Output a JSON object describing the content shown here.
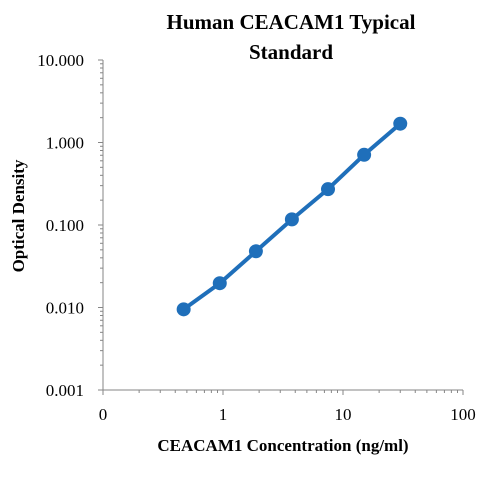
{
  "chart_data": {
    "type": "line",
    "title_lines": [
      "Human CEACAM1 Typical",
      "Standard"
    ],
    "xlabel": "CEACAM1 Concentration (ng/ml)",
    "ylabel": "Optical Density",
    "xscale": "log",
    "yscale": "log",
    "xlim": [
      0.1,
      100
    ],
    "ylim": [
      0.001,
      10
    ],
    "x_tick_labels": [
      "0",
      "1",
      "10",
      "100"
    ],
    "x_tick_values": [
      0.1,
      1,
      10,
      100
    ],
    "y_tick_labels": [
      "0.001",
      "0.010",
      "0.100",
      "1.000",
      "10.000"
    ],
    "y_tick_values": [
      0.001,
      0.01,
      0.1,
      1,
      10
    ],
    "grid": false,
    "legend": "none",
    "series": [
      {
        "color": "#1f6fba",
        "x": [
          0.47,
          0.94,
          1.88,
          3.75,
          7.5,
          15,
          30
        ],
        "y": [
          0.0095,
          0.0197,
          0.048,
          0.117,
          0.272,
          0.71,
          1.69
        ]
      }
    ]
  }
}
